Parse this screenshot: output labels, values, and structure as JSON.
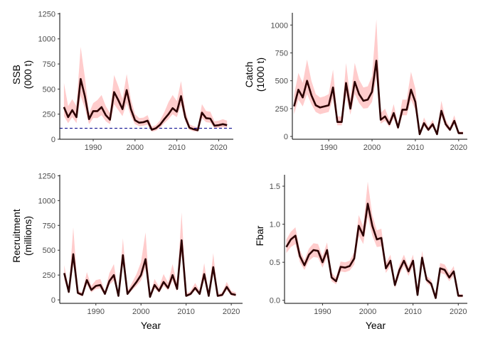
{
  "chart_data": [
    {
      "type": "line",
      "title": "",
      "xlabel": "",
      "ylabel_lines": [
        "SSB",
        "(000 t)"
      ],
      "xlim": [
        1982,
        2023.5
      ],
      "ylim": [
        0,
        1260
      ],
      "xticks": [
        "1990",
        "2000",
        "2010",
        "2020"
      ],
      "yticks": [
        "0",
        "250",
        "500",
        "750",
        "1000",
        "1250"
      ],
      "x": [
        1983,
        1984,
        1985,
        1986,
        1987,
        1988,
        1989,
        1990,
        1991,
        1992,
        1993,
        1994,
        1995,
        1996,
        1997,
        1998,
        1999,
        2000,
        2001,
        2002,
        2003,
        2004,
        2005,
        2006,
        2007,
        2008,
        2009,
        2010,
        2011,
        2012,
        2013,
        2014,
        2015,
        2016,
        2017,
        2018,
        2019,
        2020,
        2021,
        2022
      ],
      "series": [
        {
          "name": "Estimate",
          "values": [
            320,
            220,
            290,
            220,
            600,
            430,
            200,
            280,
            280,
            320,
            240,
            195,
            470,
            390,
            300,
            490,
            300,
            190,
            165,
            170,
            185,
            95,
            110,
            145,
            200,
            250,
            310,
            275,
            430,
            220,
            115,
            100,
            90,
            265,
            210,
            205,
            135,
            140,
            150,
            140
          ]
        },
        {
          "name": "Lower",
          "values": [
            230,
            160,
            220,
            160,
            430,
            310,
            150,
            210,
            210,
            240,
            180,
            150,
            350,
            290,
            230,
            360,
            230,
            150,
            130,
            135,
            145,
            75,
            85,
            115,
            160,
            200,
            250,
            220,
            340,
            180,
            95,
            80,
            75,
            210,
            170,
            165,
            110,
            115,
            120,
            115
          ]
        },
        {
          "name": "Upper",
          "values": [
            560,
            330,
            400,
            330,
            920,
            620,
            260,
            360,
            390,
            440,
            330,
            260,
            640,
            530,
            400,
            650,
            400,
            250,
            210,
            215,
            240,
            125,
            140,
            190,
            270,
            370,
            440,
            380,
            580,
            290,
            150,
            130,
            120,
            350,
            280,
            275,
            180,
            185,
            200,
            185
          ]
        }
      ],
      "reference_line": {
        "value": 110,
        "style": "dashed",
        "color": "#00008b"
      }
    },
    {
      "type": "line",
      "title": "",
      "xlabel": "",
      "ylabel_lines": [
        "Catch",
        "(1000 t)"
      ],
      "xlim": [
        1981.6,
        2022
      ],
      "ylim": [
        -25,
        1110
      ],
      "xticks": [
        "1990",
        "2000",
        "2010",
        "2020"
      ],
      "yticks": [
        "0",
        "250",
        "500",
        "750",
        "1000"
      ],
      "x": [
        1982,
        1983,
        1984,
        1985,
        1986,
        1987,
        1988,
        1989,
        1990,
        1991,
        1992,
        1993,
        1994,
        1995,
        1996,
        1997,
        1998,
        1999,
        2000,
        2001,
        2002,
        2003,
        2004,
        2005,
        2006,
        2007,
        2008,
        2009,
        2010,
        2011,
        2012,
        2013,
        2014,
        2015,
        2016,
        2017,
        2018,
        2019,
        2020,
        2021
      ],
      "series": [
        {
          "name": "Estimate",
          "values": [
            270,
            420,
            350,
            500,
            370,
            280,
            260,
            270,
            280,
            440,
            130,
            130,
            480,
            250,
            490,
            380,
            320,
            330,
            400,
            680,
            150,
            180,
            110,
            210,
            80,
            240,
            240,
            420,
            310,
            20,
            120,
            60,
            110,
            20,
            230,
            110,
            60,
            140,
            30,
            30
          ]
        },
        {
          "name": "Lower",
          "values": [
            200,
            330,
            270,
            380,
            290,
            220,
            200,
            210,
            220,
            340,
            100,
            100,
            370,
            195,
            380,
            300,
            250,
            255,
            310,
            530,
            115,
            140,
            85,
            165,
            60,
            190,
            190,
            330,
            240,
            10,
            90,
            45,
            85,
            10,
            180,
            85,
            45,
            110,
            20,
            20
          ]
        },
        {
          "name": "Upper",
          "values": [
            370,
            570,
            480,
            690,
            500,
            380,
            350,
            360,
            380,
            600,
            180,
            180,
            660,
            340,
            660,
            510,
            440,
            450,
            540,
            1050,
            210,
            250,
            150,
            290,
            110,
            330,
            330,
            580,
            430,
            35,
            170,
            85,
            150,
            35,
            320,
            150,
            85,
            190,
            45,
            45
          ]
        }
      ]
    },
    {
      "type": "line",
      "title": "",
      "xlabel": "Year",
      "ylabel_lines": [
        "Recruitment",
        "(millions)"
      ],
      "xlim": [
        1982,
        2022.5
      ],
      "ylim": [
        -35,
        1260
      ],
      "xticks": [
        "1990",
        "2000",
        "2010",
        "2020"
      ],
      "yticks": [
        "0",
        "250",
        "500",
        "750",
        "1000",
        "1250"
      ],
      "x": [
        1983,
        1984,
        1985,
        1986,
        1987,
        1988,
        1989,
        1990,
        1991,
        1992,
        1993,
        1994,
        1995,
        1996,
        1997,
        1998,
        1999,
        2000,
        2001,
        2002,
        2003,
        2004,
        2005,
        2006,
        2007,
        2008,
        2009,
        2010,
        2011,
        2012,
        2013,
        2014,
        2015,
        2016,
        2017,
        2018,
        2019,
        2020,
        2021
      ],
      "series": [
        {
          "name": "Estimate",
          "values": [
            270,
            80,
            460,
            70,
            50,
            200,
            100,
            140,
            150,
            60,
            190,
            250,
            40,
            450,
            60,
            120,
            180,
            250,
            410,
            30,
            150,
            90,
            180,
            120,
            250,
            110,
            600,
            40,
            60,
            120,
            60,
            260,
            40,
            330,
            40,
            50,
            130,
            60,
            50
          ]
        },
        {
          "name": "Lower",
          "values": [
            210,
            60,
            360,
            55,
            35,
            155,
            75,
            110,
            115,
            45,
            150,
            195,
            30,
            350,
            45,
            95,
            140,
            195,
            320,
            20,
            115,
            70,
            140,
            95,
            195,
            85,
            470,
            30,
            45,
            95,
            45,
            200,
            30,
            260,
            30,
            35,
            100,
            45,
            35
          ]
        },
        {
          "name": "Upper",
          "values": [
            350,
            110,
            730,
            100,
            70,
            280,
            140,
            200,
            210,
            90,
            270,
            360,
            60,
            620,
            90,
            170,
            260,
            380,
            680,
            45,
            210,
            130,
            260,
            170,
            360,
            160,
            880,
            60,
            90,
            170,
            90,
            370,
            60,
            470,
            60,
            75,
            180,
            90,
            75
          ]
        }
      ]
    },
    {
      "type": "line",
      "title": "",
      "xlabel": "Year",
      "ylabel_lines": [
        "Fbar"
      ],
      "xlim": [
        1981.6,
        2022
      ],
      "ylim": [
        -0.04,
        1.65
      ],
      "xticks": [
        "1990",
        "2000",
        "2010",
        "2020"
      ],
      "yticks": [
        "0.0",
        "0.5",
        "1.0",
        "1.5"
      ],
      "x": [
        1982,
        1983,
        1984,
        1985,
        1986,
        1987,
        1988,
        1989,
        1990,
        1991,
        1992,
        1993,
        1994,
        1995,
        1996,
        1997,
        1998,
        1999,
        2000,
        2001,
        2002,
        2003,
        2004,
        2005,
        2006,
        2007,
        2008,
        2009,
        2010,
        2011,
        2012,
        2013,
        2014,
        2015,
        2016,
        2017,
        2018,
        2019,
        2020,
        2021
      ],
      "series": [
        {
          "name": "Estimate",
          "values": [
            0.7,
            0.8,
            0.85,
            0.58,
            0.46,
            0.6,
            0.66,
            0.65,
            0.5,
            0.66,
            0.3,
            0.25,
            0.44,
            0.43,
            0.45,
            0.55,
            0.98,
            0.85,
            1.27,
            0.98,
            0.8,
            0.82,
            0.42,
            0.52,
            0.2,
            0.4,
            0.52,
            0.38,
            0.52,
            0.07,
            0.56,
            0.27,
            0.22,
            0.03,
            0.42,
            0.4,
            0.3,
            0.38,
            0.06,
            0.06
          ]
        },
        {
          "name": "Lower",
          "values": [
            0.62,
            0.7,
            0.74,
            0.5,
            0.4,
            0.52,
            0.57,
            0.56,
            0.43,
            0.57,
            0.25,
            0.21,
            0.38,
            0.37,
            0.39,
            0.47,
            0.85,
            0.74,
            1.1,
            0.85,
            0.7,
            0.71,
            0.36,
            0.45,
            0.16,
            0.34,
            0.45,
            0.32,
            0.45,
            0.05,
            0.48,
            0.23,
            0.18,
            0.02,
            0.36,
            0.34,
            0.25,
            0.32,
            0.04,
            0.04
          ]
        },
        {
          "name": "Upper",
          "values": [
            0.8,
            0.9,
            0.96,
            0.66,
            0.53,
            0.68,
            0.75,
            0.74,
            0.58,
            0.76,
            0.36,
            0.3,
            0.51,
            0.5,
            0.52,
            0.63,
            1.12,
            0.97,
            1.56,
            1.12,
            0.92,
            0.94,
            0.49,
            0.6,
            0.25,
            0.47,
            0.6,
            0.44,
            0.6,
            0.09,
            0.65,
            0.32,
            0.27,
            0.05,
            0.49,
            0.47,
            0.36,
            0.45,
            0.08,
            0.08
          ]
        }
      ]
    }
  ],
  "colors": {
    "line": "#2b0000",
    "band": "#ffcccc",
    "reference": "#00008b"
  }
}
